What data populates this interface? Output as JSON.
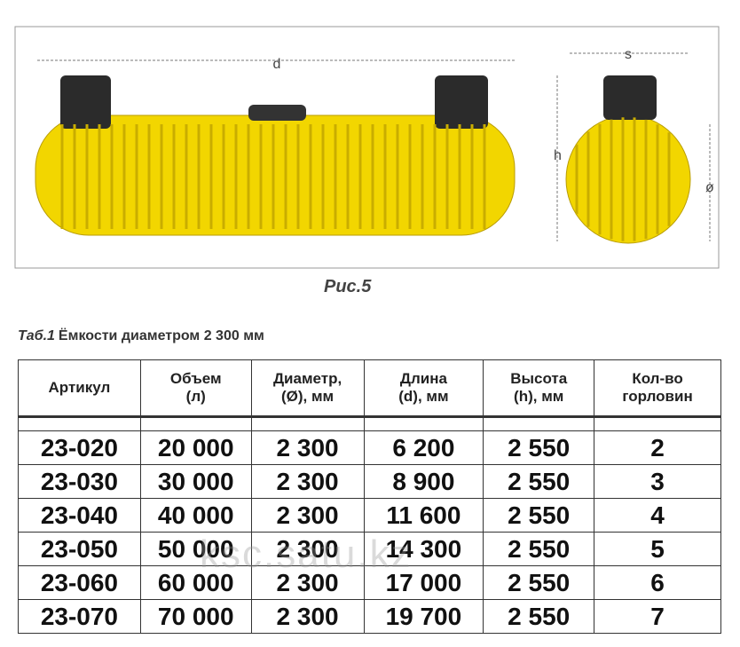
{
  "figure": {
    "dim_d": "d",
    "dim_s": "s",
    "dim_h": "h",
    "dim_diameter": "ø",
    "caption": "Рис.5"
  },
  "table": {
    "label": "Таб.1",
    "title": "Ёмкости диаметром 2 300 мм",
    "headers": [
      "Артикул",
      "Объем\n(л)",
      "Диаметр,\n(Ø), мм",
      "Длина\n(d), мм",
      "Высота\n(h), мм",
      "Кол-во\nгорловин"
    ],
    "rows": [
      [
        "23-020",
        "20 000",
        "2 300",
        "6 200",
        "2 550",
        "2"
      ],
      [
        "23-030",
        "30 000",
        "2 300",
        "8 900",
        "2 550",
        "3"
      ],
      [
        "23-040",
        "40 000",
        "2 300",
        "11 600",
        "2 550",
        "4"
      ],
      [
        "23-050",
        "50 000",
        "2 300",
        "14 300",
        "2 550",
        "5"
      ],
      [
        "23-060",
        "60 000",
        "2 300",
        "17 000",
        "2 550",
        "6"
      ],
      [
        "23-070",
        "70 000",
        "2 300",
        "19 700",
        "2 550",
        "7"
      ]
    ]
  },
  "watermark": "ksc.satu.kz"
}
